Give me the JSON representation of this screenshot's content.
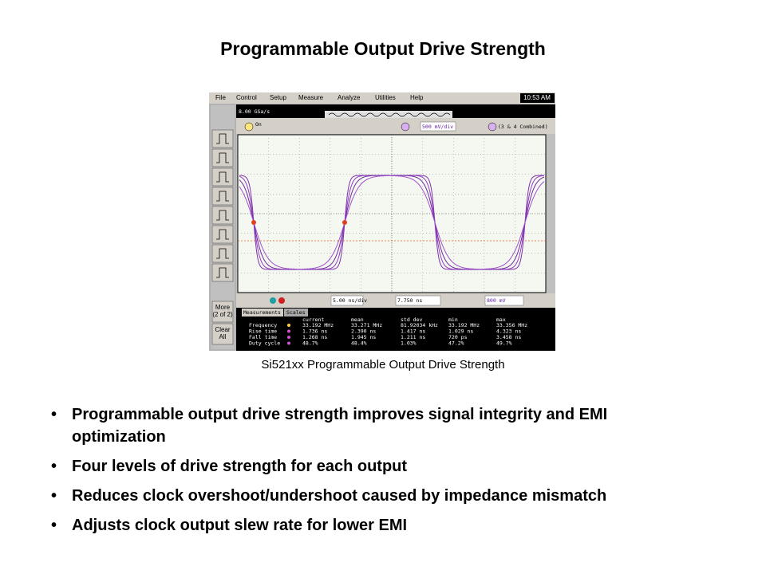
{
  "title": "Programmable Output Drive Strength",
  "figure": {
    "menu": [
      "File",
      "Control",
      "Setup",
      "Measure",
      "Analyze",
      "Utilities",
      "Help"
    ],
    "clock": "10:53 AM",
    "sample_rate": "8.00 GSa/s",
    "channel1": "On",
    "channel3_scale": "500 mV/div",
    "channel4": "(3 & 4 Combined)",
    "more_button": [
      "More",
      "(2 of 2)"
    ],
    "clear_button": [
      "Clear",
      "All"
    ],
    "timebase": "5.00 ns/div",
    "delay": "7.750 ns",
    "trigger_level": "800 mV",
    "tabs": [
      "Measurements",
      "Scales"
    ],
    "measurements": {
      "header": [
        "current",
        "mean",
        "std dev",
        "min",
        "max"
      ],
      "rows": [
        {
          "label": "Frequency",
          "values": [
            "33.192 MHz",
            "33.271 MHz",
            "81.92034 kHz",
            "33.192 MHz",
            "33.356 MHz"
          ]
        },
        {
          "label": "Rise time",
          "values": [
            "1.736 ns",
            "2.390 ns",
            "1.417 ns",
            "1.029 ns",
            "4.323 ns"
          ]
        },
        {
          "label": "Fall time",
          "values": [
            "1.268 ns",
            "1.945 ns",
            "1.211 ns",
            "720 ps",
            "3.458 ns"
          ]
        },
        {
          "label": "Duty cycle",
          "values": [
            "48.7%",
            "48.4%",
            "1.03%",
            "47.2%",
            "49.7%"
          ]
        }
      ]
    },
    "caption": "Si521xx Programmable Output Drive Strength"
  },
  "bullets": [
    [
      "Programmable output drive strength improves signal integrity and EMI",
      "optimization"
    ],
    [
      "Four levels of drive strength for each output"
    ],
    [
      "Reduces clock overshoot/undershoot caused by impedance mismatch"
    ],
    [
      "Adjusts clock output slew rate for lower EMI"
    ]
  ]
}
